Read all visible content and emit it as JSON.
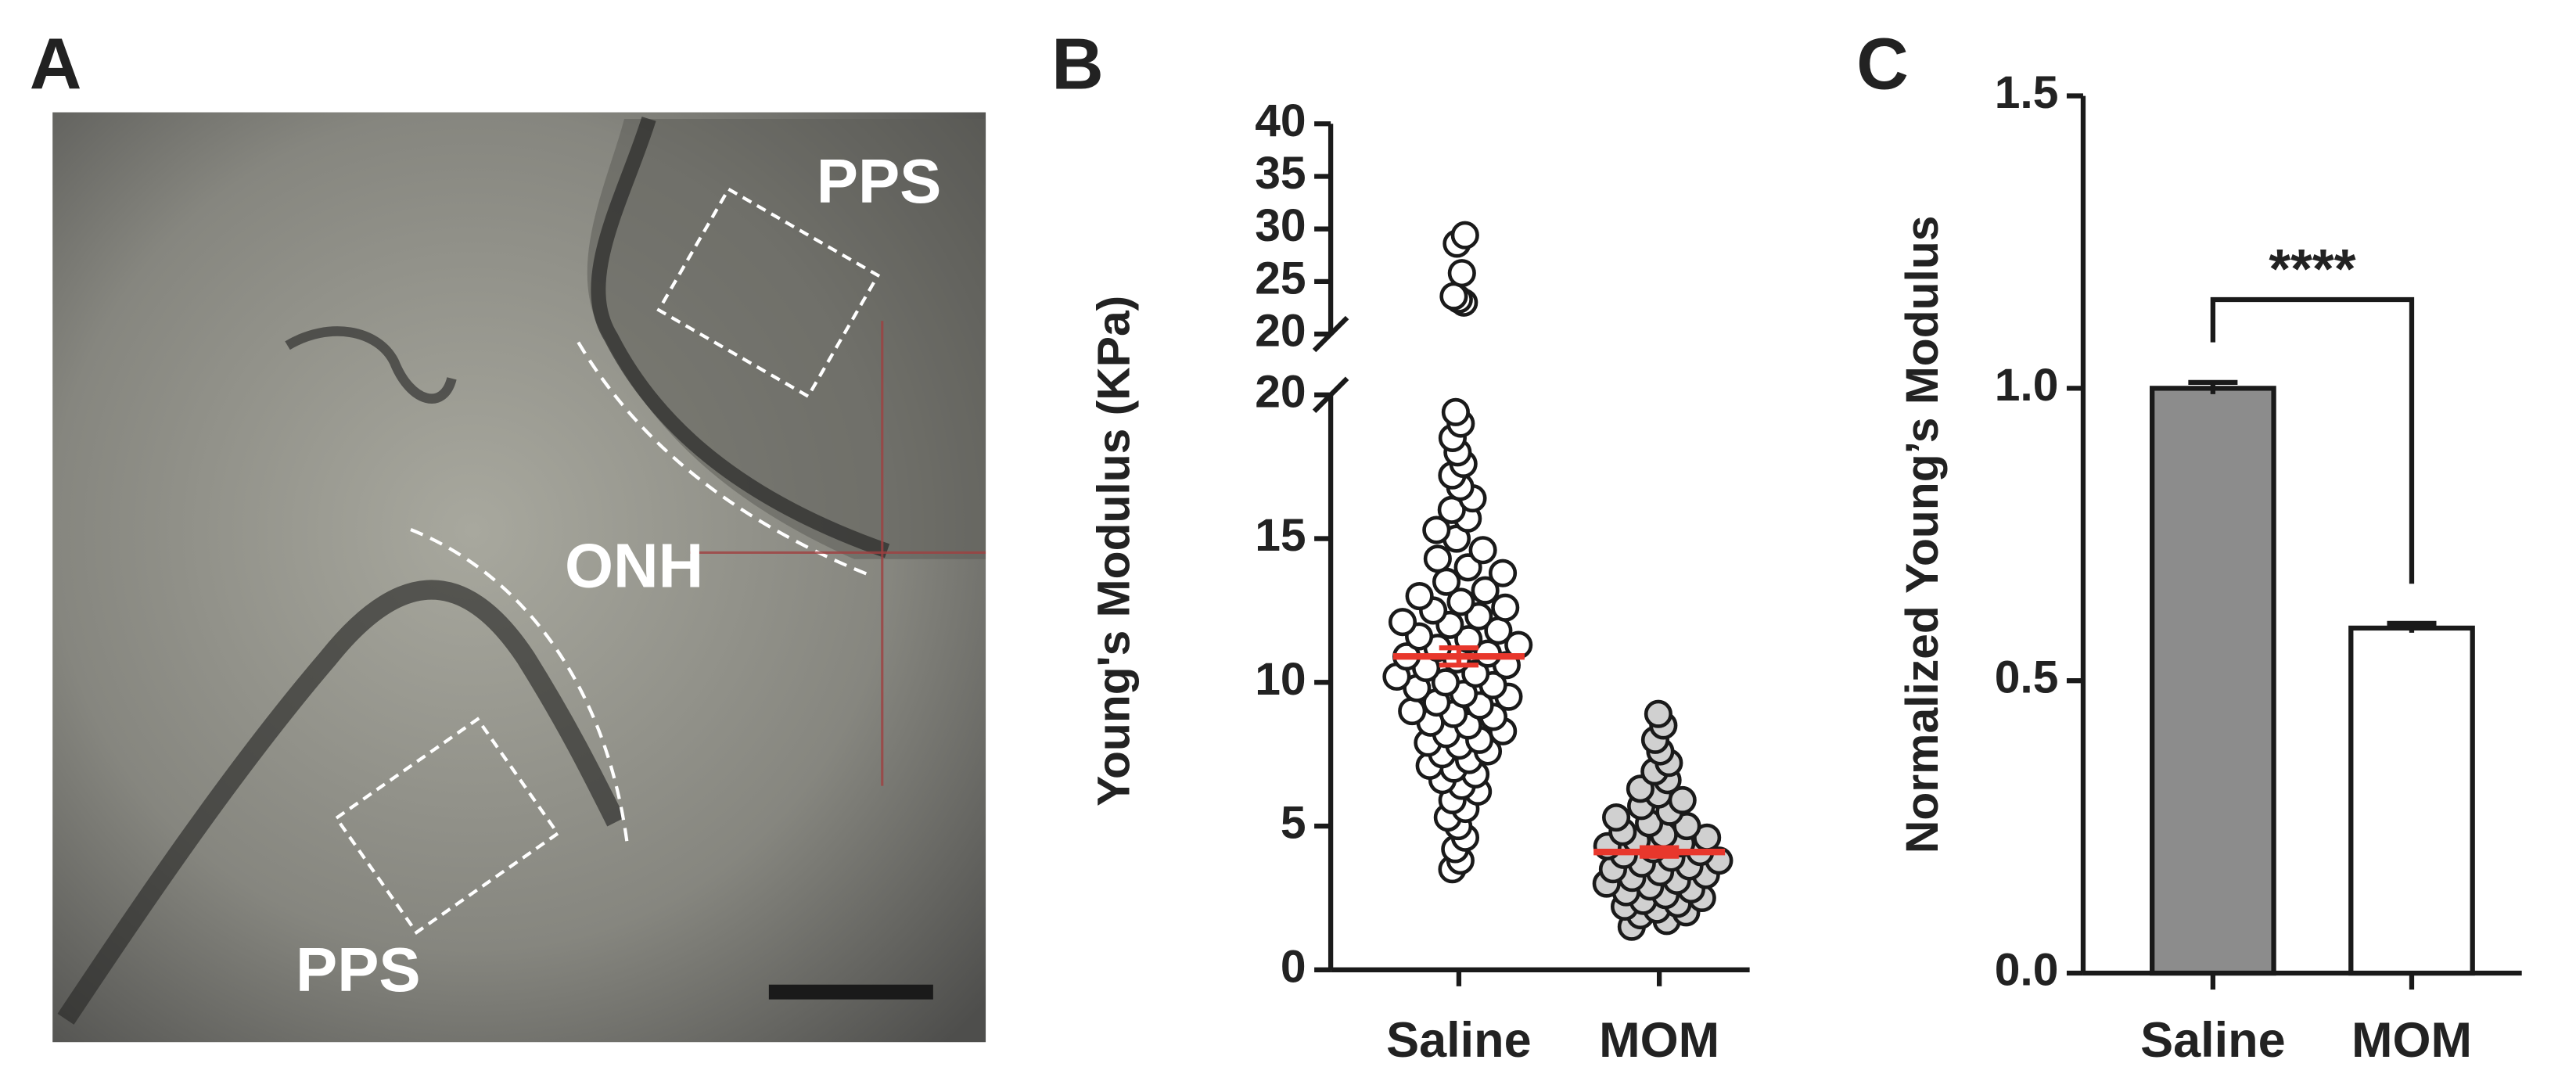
{
  "chart_data": [
    {
      "type": "image",
      "panel_label": "A",
      "annotations": [
        "PPS",
        "ONH",
        "PPS"
      ]
    },
    {
      "type": "scatter",
      "panel_label": "B",
      "ylabel": "Young's Modulus (KPa)",
      "categories": [
        "Saline",
        "MOM"
      ],
      "series": [
        {
          "color": "#ffffff",
          "mean": 10.9,
          "sem": 0.3,
          "mean_color": "#e8372c",
          "values": [
            3.5,
            3.8,
            4.2,
            4.6,
            5.0,
            5.3,
            5.6,
            5.9,
            6.2,
            6.4,
            6.6,
            6.8,
            7.0,
            7.1,
            7.3,
            7.5,
            7.6,
            7.8,
            7.9,
            8.0,
            8.2,
            8.3,
            8.5,
            8.6,
            8.8,
            8.9,
            9.0,
            9.2,
            9.3,
            9.5,
            9.6,
            9.8,
            9.9,
            10.0,
            10.2,
            10.3,
            10.5,
            10.6,
            10.8,
            10.9,
            11.0,
            11.2,
            11.3,
            11.5,
            11.6,
            11.8,
            12.0,
            12.1,
            12.3,
            12.5,
            12.6,
            12.8,
            13.0,
            13.2,
            13.5,
            13.8,
            14.0,
            14.3,
            14.6,
            15.0,
            15.3,
            15.7,
            16.0,
            16.4,
            16.8,
            17.2,
            17.6,
            18.0,
            18.5,
            19.0,
            19.4,
            23.0,
            23.3,
            23.6,
            25.8,
            28.6,
            29.4
          ]
        },
        {
          "color": "#d0d0d0",
          "mean": 4.1,
          "sem": 0.15,
          "mean_color": "#e8372c",
          "values": [
            1.5,
            1.7,
            1.9,
            2.0,
            2.1,
            2.2,
            2.3,
            2.4,
            2.5,
            2.6,
            2.7,
            2.8,
            2.9,
            3.0,
            3.1,
            3.2,
            3.3,
            3.4,
            3.5,
            3.6,
            3.7,
            3.8,
            3.9,
            4.0,
            4.1,
            4.2,
            4.3,
            4.4,
            4.5,
            4.6,
            4.7,
            4.8,
            5.0,
            5.1,
            5.3,
            5.5,
            5.7,
            5.9,
            6.1,
            6.3,
            6.6,
            6.9,
            7.2,
            7.6,
            8.0,
            8.5,
            8.9
          ]
        }
      ],
      "y_segments": [
        {
          "ylim": [
            0,
            20
          ],
          "yticks": [
            0,
            5,
            10,
            15,
            20
          ]
        },
        {
          "ylim": [
            20,
            40
          ],
          "yticks": [
            20,
            25,
            30,
            35,
            40
          ]
        }
      ]
    },
    {
      "type": "bar",
      "panel_label": "C",
      "ylabel": "Normalized Young’s Modulus",
      "categories": [
        "Saline",
        "MOM"
      ],
      "values": [
        1.0,
        0.59
      ],
      "errors": [
        0.01,
        0.008
      ],
      "colors": [
        "#8c8c8c",
        "#ffffff"
      ],
      "ylim": [
        0,
        1.5
      ],
      "yticks": [
        {
          "value": 0,
          "label": "0.0"
        },
        {
          "value": 0.5,
          "label": "0.5"
        },
        {
          "value": 1.0,
          "label": "1.0"
        },
        {
          "value": 1.5,
          "label": "1.5"
        }
      ],
      "annotation": "****"
    }
  ]
}
